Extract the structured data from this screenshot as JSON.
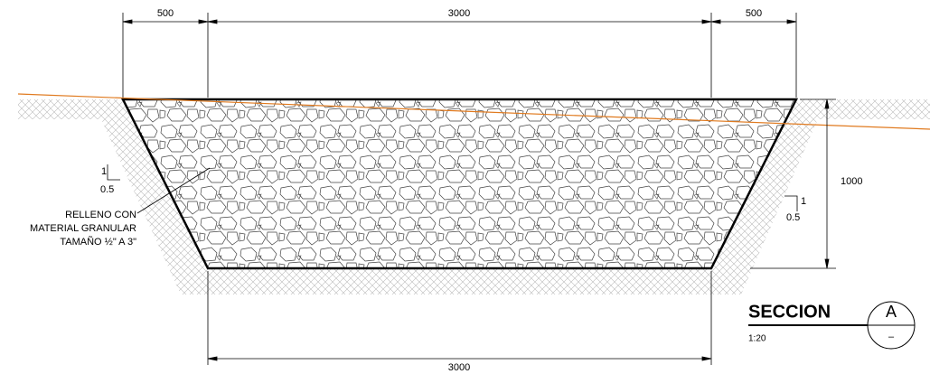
{
  "dimensions": {
    "top_left": "500",
    "top_middle": "3000",
    "top_right": "500",
    "depth": "1000",
    "bottom": "3000"
  },
  "slope_left": {
    "rise": "1",
    "run": "0.5"
  },
  "slope_right": {
    "rise": "1",
    "run": "0.5"
  },
  "annotation": [
    "RELLENO CON",
    "MATERIAL GRANULAR",
    "TAMAÑO ½\" A 3\""
  ],
  "section": {
    "title": "SECCION",
    "scale": "1:20",
    "letter": "A",
    "sheet": "–"
  }
}
